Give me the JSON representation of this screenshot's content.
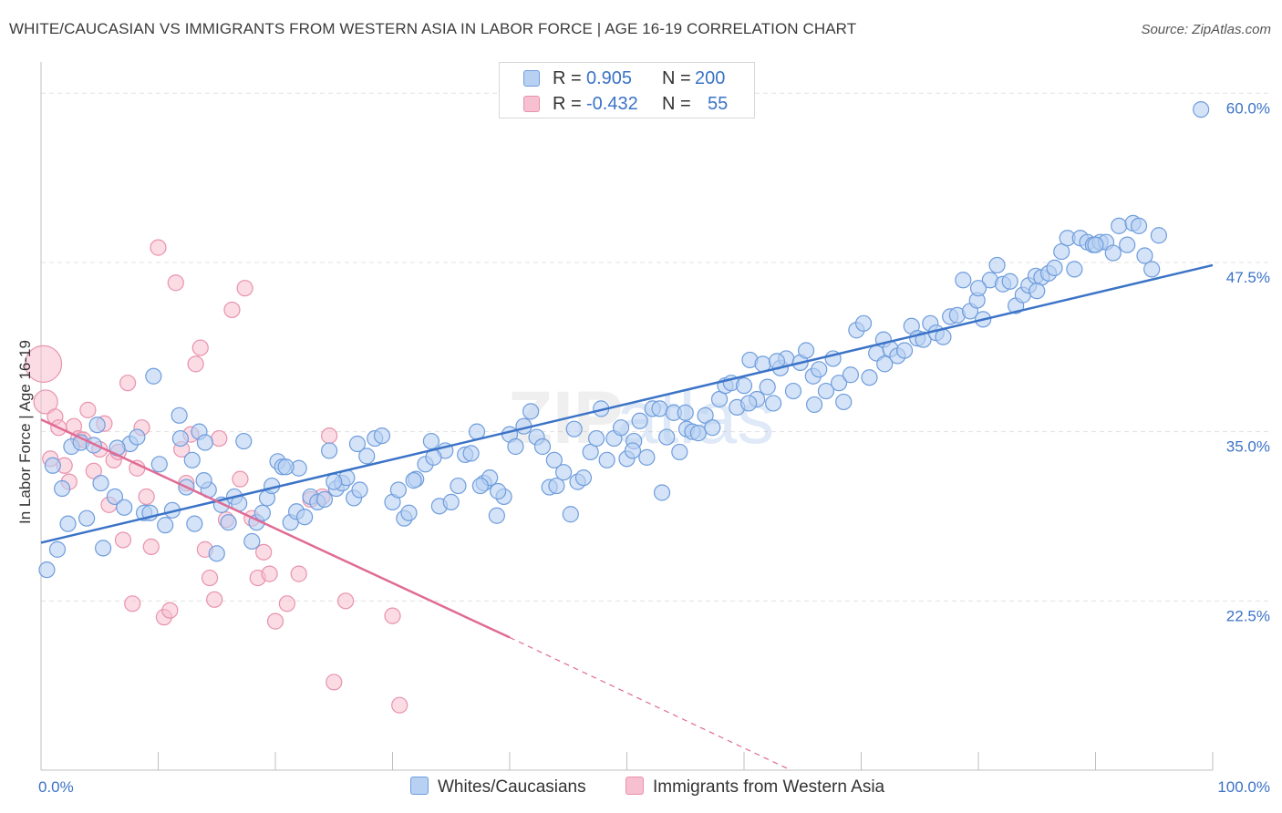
{
  "header": {
    "title": "WHITE/CAUCASIAN VS IMMIGRANTS FROM WESTERN ASIA IN LABOR FORCE | AGE 16-19 CORRELATION CHART",
    "source": "Source: ZipAtlas.com"
  },
  "legend": {
    "rows": [
      {
        "r_label": "R =",
        "r_value": "0.905",
        "n_label": "N =",
        "n_value": "200"
      },
      {
        "r_label": "R =",
        "r_value": "-0.432",
        "n_label": "N =",
        "n_value": "55"
      }
    ]
  },
  "watermark": {
    "zip": "ZIP",
    "atlas": "atlas"
  },
  "colors": {
    "blue_fill": "#b8d0f2",
    "blue_stroke": "#6f9ddd",
    "blue_line": "#3b73c7",
    "pink_fill": "#f7c0d0",
    "pink_stroke": "#e892ad",
    "pink_line": "#e06b95",
    "axis_label": "#3b73c7",
    "grid": "#e1e1e1"
  },
  "chart_data": {
    "type": "scatter",
    "title": "WHITE/CAUCASIAN VS IMMIGRANTS FROM WESTERN ASIA IN LABOR FORCE | AGE 16-19 CORRELATION CHART",
    "xlabel": "",
    "ylabel": "In Labor Force | Age 16-19",
    "xlim": [
      0,
      100
    ],
    "ylim": [
      10,
      61.5
    ],
    "x_tick_labels": [
      "0.0%",
      "100.0%"
    ],
    "y_ticks": [
      22.5,
      35.0,
      47.5,
      60.0
    ],
    "y_tick_labels": [
      "22.5%",
      "35.0%",
      "47.5%",
      "60.0%"
    ],
    "grid": true,
    "legend_position": "top-center",
    "series": [
      {
        "name": "Whites/Caucasians",
        "color": "#6f9ddd",
        "trend": {
          "x0": 0,
          "y0": 26.8,
          "x1": 100,
          "y1": 47.3
        },
        "points": [
          [
            0.5,
            24.8
          ],
          [
            1.4,
            26.3
          ],
          [
            2.3,
            28.2
          ],
          [
            3.9,
            28.6
          ],
          [
            1.0,
            32.5
          ],
          [
            1.8,
            30.8
          ],
          [
            2.6,
            33.9
          ],
          [
            3.4,
            34.2
          ],
          [
            4.8,
            35.5
          ],
          [
            5.1,
            31.2
          ],
          [
            5.3,
            26.4
          ],
          [
            6.3,
            30.2
          ],
          [
            7.1,
            29.4
          ],
          [
            7.6,
            34.1
          ],
          [
            8.2,
            34.6
          ],
          [
            8.8,
            29.0
          ],
          [
            9.3,
            29.0
          ],
          [
            10.1,
            32.6
          ],
          [
            10.6,
            28.1
          ],
          [
            11.2,
            29.2
          ],
          [
            11.9,
            34.5
          ],
          [
            12.4,
            30.9
          ],
          [
            13.1,
            28.2
          ],
          [
            13.5,
            35.0
          ],
          [
            14.0,
            34.2
          ],
          [
            14.3,
            30.7
          ],
          [
            15.0,
            26.0
          ],
          [
            15.4,
            29.6
          ],
          [
            16.0,
            28.3
          ],
          [
            16.5,
            30.2
          ],
          [
            16.9,
            29.7
          ],
          [
            17.3,
            34.3
          ],
          [
            18.0,
            26.9
          ],
          [
            18.4,
            28.3
          ],
          [
            18.9,
            29.0
          ],
          [
            19.3,
            30.1
          ],
          [
            19.7,
            31.0
          ],
          [
            20.2,
            32.8
          ],
          [
            20.6,
            32.4
          ],
          [
            21.3,
            28.3
          ],
          [
            21.8,
            29.1
          ],
          [
            22.5,
            28.7
          ],
          [
            23.0,
            30.2
          ],
          [
            23.6,
            29.8
          ],
          [
            24.2,
            30.0
          ],
          [
            24.6,
            33.6
          ],
          [
            25.2,
            30.8
          ],
          [
            25.7,
            31.2
          ],
          [
            26.1,
            31.6
          ],
          [
            26.7,
            30.1
          ],
          [
            27.2,
            30.7
          ],
          [
            27.8,
            33.2
          ],
          [
            28.5,
            34.5
          ],
          [
            29.1,
            34.7
          ],
          [
            30.0,
            29.8
          ],
          [
            30.5,
            30.7
          ],
          [
            31.0,
            28.6
          ],
          [
            31.4,
            29.0
          ],
          [
            32.0,
            31.5
          ],
          [
            32.8,
            32.6
          ],
          [
            33.3,
            34.3
          ],
          [
            34.0,
            29.5
          ],
          [
            34.5,
            33.6
          ],
          [
            35.0,
            29.8
          ],
          [
            35.6,
            31.0
          ],
          [
            36.2,
            33.3
          ],
          [
            36.7,
            33.4
          ],
          [
            37.2,
            35.0
          ],
          [
            37.8,
            31.2
          ],
          [
            38.3,
            31.6
          ],
          [
            38.9,
            28.8
          ],
          [
            39.5,
            30.2
          ],
          [
            40.0,
            34.8
          ],
          [
            40.5,
            33.9
          ],
          [
            41.2,
            35.4
          ],
          [
            41.8,
            36.5
          ],
          [
            42.3,
            34.6
          ],
          [
            42.8,
            33.9
          ],
          [
            43.4,
            30.9
          ],
          [
            44.0,
            31.0
          ],
          [
            44.6,
            32.0
          ],
          [
            45.2,
            28.9
          ],
          [
            45.8,
            31.3
          ],
          [
            46.3,
            31.6
          ],
          [
            46.9,
            33.5
          ],
          [
            47.4,
            34.5
          ],
          [
            47.8,
            36.7
          ],
          [
            48.3,
            32.9
          ],
          [
            48.9,
            34.5
          ],
          [
            49.5,
            35.3
          ],
          [
            50.0,
            33.0
          ],
          [
            50.6,
            34.3
          ],
          [
            51.1,
            35.8
          ],
          [
            51.7,
            33.1
          ],
          [
            52.2,
            36.7
          ],
          [
            52.8,
            36.7
          ],
          [
            53.4,
            34.6
          ],
          [
            54.0,
            36.4
          ],
          [
            54.5,
            33.5
          ],
          [
            55.1,
            35.2
          ],
          [
            55.6,
            35.0
          ],
          [
            56.1,
            34.9
          ],
          [
            56.7,
            36.2
          ],
          [
            57.3,
            35.3
          ],
          [
            57.9,
            37.4
          ],
          [
            58.4,
            38.4
          ],
          [
            58.9,
            38.6
          ],
          [
            59.4,
            36.8
          ],
          [
            60.0,
            38.4
          ],
          [
            60.5,
            40.3
          ],
          [
            61.1,
            37.4
          ],
          [
            61.6,
            40.0
          ],
          [
            62.0,
            38.3
          ],
          [
            62.5,
            37.1
          ],
          [
            63.1,
            39.7
          ],
          [
            63.6,
            40.4
          ],
          [
            64.2,
            38.0
          ],
          [
            64.8,
            40.1
          ],
          [
            65.3,
            41.0
          ],
          [
            65.9,
            39.1
          ],
          [
            66.4,
            39.6
          ],
          [
            67.0,
            38.0
          ],
          [
            67.6,
            40.4
          ],
          [
            68.1,
            38.6
          ],
          [
            68.5,
            37.2
          ],
          [
            69.1,
            39.2
          ],
          [
            69.6,
            42.5
          ],
          [
            70.2,
            43.0
          ],
          [
            70.7,
            39.0
          ],
          [
            71.3,
            40.8
          ],
          [
            71.9,
            41.8
          ],
          [
            72.5,
            41.1
          ],
          [
            73.1,
            40.6
          ],
          [
            73.7,
            41.0
          ],
          [
            74.3,
            42.8
          ],
          [
            74.8,
            41.9
          ],
          [
            75.3,
            41.8
          ],
          [
            75.9,
            43.0
          ],
          [
            76.4,
            42.3
          ],
          [
            77.0,
            42.0
          ],
          [
            77.6,
            43.5
          ],
          [
            78.2,
            43.6
          ],
          [
            78.7,
            46.2
          ],
          [
            79.3,
            43.9
          ],
          [
            79.9,
            44.7
          ],
          [
            80.4,
            43.3
          ],
          [
            81.0,
            46.2
          ],
          [
            81.6,
            47.3
          ],
          [
            82.1,
            45.9
          ],
          [
            82.7,
            46.1
          ],
          [
            83.2,
            44.3
          ],
          [
            83.8,
            45.1
          ],
          [
            84.3,
            45.8
          ],
          [
            84.9,
            46.5
          ],
          [
            85.4,
            46.4
          ],
          [
            86.0,
            46.7
          ],
          [
            86.5,
            47.1
          ],
          [
            87.1,
            48.3
          ],
          [
            87.6,
            49.3
          ],
          [
            88.2,
            47.0
          ],
          [
            88.7,
            49.3
          ],
          [
            89.3,
            49.0
          ],
          [
            89.8,
            48.8
          ],
          [
            90.4,
            49.0
          ],
          [
            90.9,
            49.0
          ],
          [
            91.5,
            48.2
          ],
          [
            92.0,
            50.2
          ],
          [
            92.7,
            48.8
          ],
          [
            93.2,
            50.4
          ],
          [
            93.7,
            50.2
          ],
          [
            94.2,
            48.0
          ],
          [
            94.8,
            47.0
          ],
          [
            95.4,
            49.5
          ],
          [
            99.0,
            58.8
          ],
          [
            9.6,
            39.1
          ],
          [
            11.8,
            36.2
          ],
          [
            4.5,
            34.0
          ],
          [
            6.5,
            33.8
          ],
          [
            13.9,
            31.4
          ],
          [
            22.0,
            32.3
          ],
          [
            27.0,
            34.1
          ],
          [
            33.5,
            33.1
          ],
          [
            39.0,
            30.6
          ],
          [
            45.5,
            35.2
          ],
          [
            50.5,
            33.6
          ],
          [
            55.0,
            36.4
          ],
          [
            60.4,
            37.1
          ],
          [
            66.0,
            37.0
          ],
          [
            72.0,
            40.0
          ],
          [
            80.0,
            45.6
          ],
          [
            85.0,
            45.4
          ],
          [
            90.0,
            48.8
          ],
          [
            25.0,
            31.3
          ],
          [
            31.8,
            31.4
          ],
          [
            43.8,
            32.9
          ],
          [
            20.9,
            32.4
          ],
          [
            12.9,
            32.9
          ],
          [
            37.5,
            31.0
          ],
          [
            53.0,
            30.5
          ],
          [
            62.8,
            40.2
          ]
        ]
      },
      {
        "name": "Immigrants from Western Asia",
        "color": "#e892ad",
        "trend": {
          "x0": 0,
          "y0": 35.9,
          "x1": 40,
          "y1": 19.8,
          "dash_to": {
            "x": 64,
            "y": 10.0
          }
        },
        "points": [
          [
            0.2,
            40.0
          ],
          [
            0.4,
            37.2
          ],
          [
            0.8,
            33.0
          ],
          [
            1.2,
            36.1
          ],
          [
            1.5,
            35.3
          ],
          [
            2.0,
            32.5
          ],
          [
            2.4,
            31.3
          ],
          [
            2.8,
            35.4
          ],
          [
            3.2,
            34.5
          ],
          [
            3.6,
            34.4
          ],
          [
            4.0,
            36.6
          ],
          [
            4.5,
            32.1
          ],
          [
            5.0,
            33.7
          ],
          [
            5.4,
            35.6
          ],
          [
            5.8,
            29.6
          ],
          [
            6.2,
            32.9
          ],
          [
            6.6,
            33.5
          ],
          [
            7.0,
            27.0
          ],
          [
            7.4,
            38.6
          ],
          [
            7.8,
            22.3
          ],
          [
            8.2,
            32.3
          ],
          [
            8.6,
            35.3
          ],
          [
            9.0,
            30.2
          ],
          [
            9.4,
            26.5
          ],
          [
            10.0,
            48.6
          ],
          [
            10.5,
            21.3
          ],
          [
            11.0,
            21.8
          ],
          [
            11.5,
            46.0
          ],
          [
            12.0,
            33.7
          ],
          [
            12.4,
            31.2
          ],
          [
            12.8,
            34.8
          ],
          [
            13.2,
            40.0
          ],
          [
            13.6,
            41.2
          ],
          [
            14.0,
            26.3
          ],
          [
            14.4,
            24.2
          ],
          [
            14.8,
            22.6
          ],
          [
            15.2,
            34.5
          ],
          [
            15.8,
            28.5
          ],
          [
            16.3,
            44.0
          ],
          [
            17.0,
            31.5
          ],
          [
            17.4,
            45.6
          ],
          [
            18.0,
            28.6
          ],
          [
            18.5,
            24.2
          ],
          [
            19.0,
            26.1
          ],
          [
            19.5,
            24.5
          ],
          [
            20.0,
            21.0
          ],
          [
            21.0,
            22.3
          ],
          [
            22.0,
            24.5
          ],
          [
            23.0,
            30.0
          ],
          [
            24.0,
            30.2
          ],
          [
            24.6,
            34.7
          ],
          [
            25.0,
            16.5
          ],
          [
            26.0,
            22.5
          ],
          [
            30.0,
            21.4
          ],
          [
            30.6,
            14.8
          ]
        ]
      }
    ]
  }
}
